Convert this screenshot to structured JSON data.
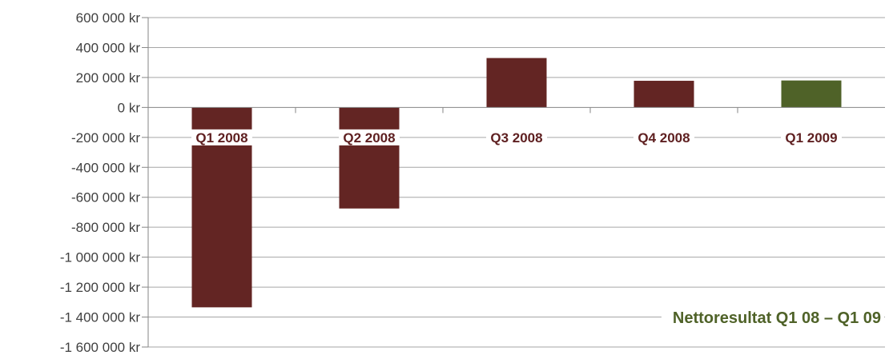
{
  "chart_data": {
    "type": "bar",
    "title": "Nettoresultat Q1 08 –  Q1 09",
    "categories": [
      "Q1 2008",
      "Q2 2008",
      "Q3 2008",
      "Q4 2008",
      "Q1 2009"
    ],
    "values": [
      -1335000,
      -675000,
      330000,
      178000,
      180000
    ],
    "ylim": [
      -1600000,
      600000
    ],
    "yticks": [
      600000,
      400000,
      200000,
      0,
      -200000,
      -400000,
      -600000,
      -800000,
      -1000000,
      -1200000,
      -1400000,
      -1600000
    ],
    "ytick_labels": [
      "600 000 kr",
      "400 000 kr",
      "200 000 kr",
      "0 kr",
      "-200 000 kr",
      "-400 000 kr",
      "-600 000 kr",
      "-800 000 kr",
      "-1 000 000 kr",
      "-1 200 000 kr",
      "-1 400 000 kr",
      "-1 600 000 kr"
    ],
    "grid": true,
    "legend": "none",
    "title_position": "bottom-right",
    "colors": {
      "bar": "#632523",
      "highlight_bar": "#4f6228",
      "grid": "#a6a6a6",
      "axis": "#868686",
      "xtick": "#5e1f20",
      "ytick": "#404040",
      "title": "#4f6228"
    },
    "highlight_index": 4
  }
}
